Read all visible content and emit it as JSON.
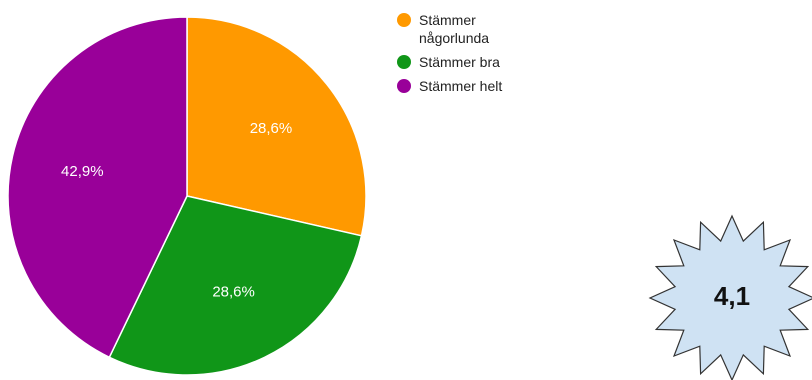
{
  "chart_data": {
    "type": "pie",
    "slices": [
      {
        "label": "Stämmer någorlunda",
        "value": 28.6,
        "display": "28,6%",
        "color": "#ff9900"
      },
      {
        "label": "Stämmer bra",
        "value": 28.6,
        "display": "28,6%",
        "color": "#109618"
      },
      {
        "label": "Stämmer helt",
        "value": 42.9,
        "display": "42,9%",
        "color": "#990099"
      }
    ],
    "legend_position": "right"
  },
  "badge": {
    "value": "4,1",
    "fill": "#cfe2f3",
    "stroke": "#333333"
  }
}
